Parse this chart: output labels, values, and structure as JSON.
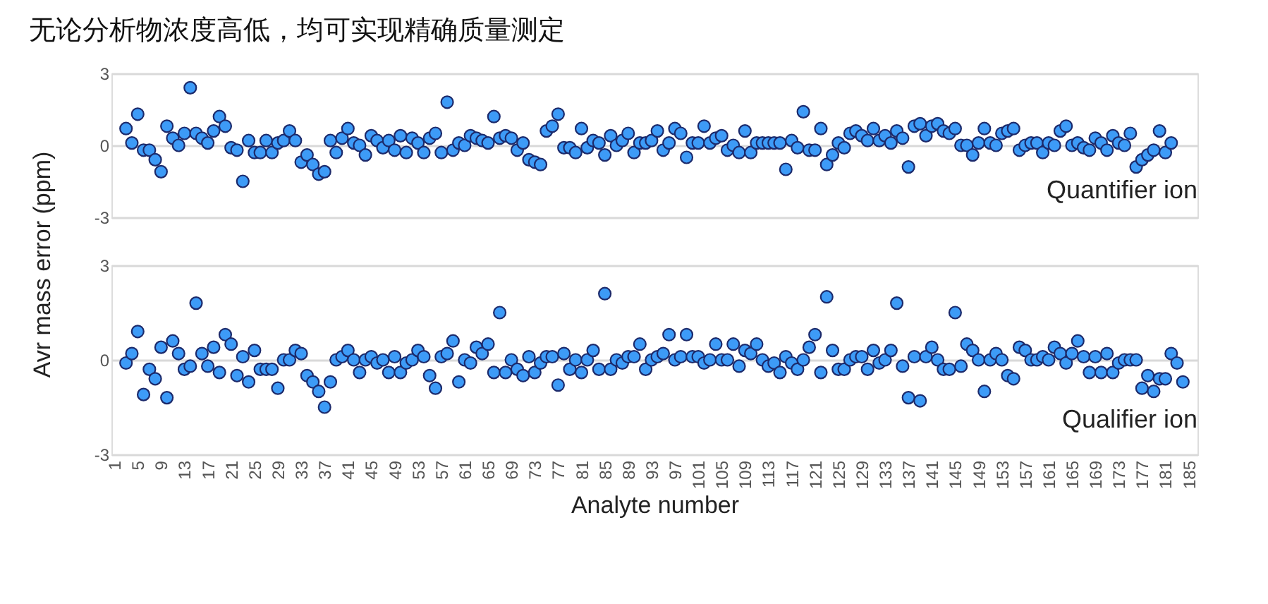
{
  "chart_data": [
    {
      "type": "scatter",
      "title": "无论分析物浓度高低，均可实现精确质量测定",
      "ylabel": "Avr mass error (ppm)",
      "annotations": [
        "Quantifier ion"
      ],
      "ylim": [
        -3,
        3
      ],
      "yticks": [
        -3,
        0,
        3
      ],
      "grid": "y",
      "marker": "circle",
      "tick_labels": "y",
      "categories": [
        "1",
        null,
        null,
        null,
        "5",
        null,
        null,
        null,
        "9",
        null,
        null,
        null,
        "13",
        null,
        null,
        null,
        "17",
        null,
        null,
        null,
        "21",
        null,
        null,
        null,
        "25",
        null,
        null,
        null,
        "29",
        null,
        null,
        null,
        "33",
        null,
        null,
        null,
        "37",
        null,
        null,
        null,
        "41",
        null,
        null,
        null,
        "45",
        null,
        null,
        null,
        "49",
        null,
        null,
        null,
        "53",
        null,
        null,
        null,
        "57",
        null,
        null,
        null,
        "61",
        null,
        null,
        null,
        "65",
        null,
        null,
        null,
        "69",
        null,
        null,
        null,
        "73",
        null,
        null,
        null,
        "77",
        null,
        null,
        null,
        "81",
        null,
        null,
        null,
        "85",
        null,
        null,
        null,
        "89",
        null,
        null,
        null,
        "93",
        null,
        null,
        null,
        "97",
        null,
        null,
        null,
        "101",
        null,
        null,
        null,
        "105",
        null,
        null,
        null,
        "109",
        null,
        null,
        null,
        "113",
        null,
        null,
        null,
        "117",
        null,
        null,
        null,
        "121",
        null,
        null,
        null,
        "125",
        null,
        null,
        null,
        "129",
        null,
        null,
        null,
        "133",
        null,
        null,
        null,
        "137",
        null,
        null,
        null,
        "141",
        null,
        null,
        null,
        "145",
        null,
        null,
        null,
        "149",
        null,
        null,
        null,
        "153",
        null,
        null,
        null,
        "157",
        null,
        null,
        null,
        "161",
        null,
        null,
        null,
        "165",
        null,
        null,
        null,
        "169",
        null,
        null,
        null,
        "173",
        null,
        null,
        null,
        "177",
        null,
        null,
        null,
        "181",
        null,
        null,
        null,
        "185",
        null
      ],
      "series": [
        {
          "color": "#3d9bf7",
          "values": [
            null,
            null,
            0.7,
            0.1,
            1.3,
            -0.2,
            -0.2,
            -0.6,
            -1.1,
            0.8,
            0.3,
            0.0,
            0.5,
            2.4,
            0.5,
            0.3,
            0.1,
            0.6,
            1.2,
            0.8,
            -0.1,
            -0.2,
            -1.5,
            0.2,
            -0.3,
            -0.3,
            0.2,
            -0.3,
            0.1,
            0.2,
            0.6,
            0.2,
            -0.7,
            -0.4,
            -0.8,
            -1.2,
            -1.1,
            0.2,
            -0.3,
            0.3,
            0.7,
            0.1,
            0.0,
            -0.4,
            0.4,
            0.2,
            -0.1,
            0.2,
            -0.2,
            0.4,
            -0.3,
            0.3,
            0.1,
            -0.3,
            0.3,
            0.5,
            -0.3,
            1.8,
            -0.2,
            0.1,
            0.0,
            0.4,
            0.3,
            0.2,
            0.1,
            1.2,
            0.3,
            0.4,
            0.3,
            -0.2,
            0.1,
            -0.6,
            -0.7,
            -0.8,
            0.6,
            0.8,
            1.3,
            -0.1,
            -0.1,
            -0.3,
            0.7,
            -0.1,
            0.2,
            0.1,
            -0.4,
            0.4,
            0.0,
            0.2,
            0.5,
            -0.3,
            0.1,
            0.1,
            0.2,
            0.6,
            -0.2,
            0.1,
            0.7,
            0.5,
            -0.5,
            0.1,
            0.1,
            0.8,
            0.1,
            0.3,
            0.4,
            -0.2,
            0.0,
            -0.3,
            0.6,
            -0.3,
            0.1,
            0.1,
            0.1,
            0.1,
            0.1,
            -1.0,
            0.2,
            -0.1,
            1.4,
            -0.2,
            -0.2,
            0.7,
            -0.8,
            -0.4,
            0.1,
            -0.1,
            0.5,
            0.6,
            0.4,
            0.2,
            0.7,
            0.2,
            0.4,
            0.1,
            0.6,
            0.3,
            -0.9,
            0.8,
            0.9,
            0.4,
            0.8,
            0.9,
            0.6,
            0.5,
            0.7,
            0.0,
            0.0,
            -0.4,
            0.1,
            0.7,
            0.1,
            0.0,
            0.5,
            0.6,
            0.7,
            -0.2,
            0.0,
            0.1,
            0.1,
            -0.3,
            0.1,
            0.0,
            0.6,
            0.8,
            0.0,
            0.1,
            -0.1,
            -0.2,
            0.3,
            0.1,
            -0.2,
            0.4,
            0.1,
            0.0,
            0.5,
            -0.9,
            -0.6,
            -0.4,
            -0.2,
            0.6,
            -0.3,
            0.1,
            null,
            null,
            null,
            null
          ]
        }
      ]
    },
    {
      "type": "scatter",
      "xlabel": "Analyte number",
      "annotations": [
        "Qualifier ion"
      ],
      "ylim": [
        -3,
        3
      ],
      "yticks": [
        -3,
        0,
        3
      ],
      "grid": "y",
      "marker": "circle",
      "categories": [
        "1",
        null,
        null,
        null,
        "5",
        null,
        null,
        null,
        "9",
        null,
        null,
        null,
        "13",
        null,
        null,
        null,
        "17",
        null,
        null,
        null,
        "21",
        null,
        null,
        null,
        "25",
        null,
        null,
        null,
        "29",
        null,
        null,
        null,
        "33",
        null,
        null,
        null,
        "37",
        null,
        null,
        null,
        "41",
        null,
        null,
        null,
        "45",
        null,
        null,
        null,
        "49",
        null,
        null,
        null,
        "53",
        null,
        null,
        null,
        "57",
        null,
        null,
        null,
        "61",
        null,
        null,
        null,
        "65",
        null,
        null,
        null,
        "69",
        null,
        null,
        null,
        "73",
        null,
        null,
        null,
        "77",
        null,
        null,
        null,
        "81",
        null,
        null,
        null,
        "85",
        null,
        null,
        null,
        "89",
        null,
        null,
        null,
        "93",
        null,
        null,
        null,
        "97",
        null,
        null,
        null,
        "101",
        null,
        null,
        null,
        "105",
        null,
        null,
        null,
        "109",
        null,
        null,
        null,
        "113",
        null,
        null,
        null,
        "117",
        null,
        null,
        null,
        "121",
        null,
        null,
        null,
        "125",
        null,
        null,
        null,
        "129",
        null,
        null,
        null,
        "133",
        null,
        null,
        null,
        "137",
        null,
        null,
        null,
        "141",
        null,
        null,
        null,
        "145",
        null,
        null,
        null,
        "149",
        null,
        null,
        null,
        "153",
        null,
        null,
        null,
        "157",
        null,
        null,
        null,
        "161",
        null,
        null,
        null,
        "165",
        null,
        null,
        null,
        "169",
        null,
        null,
        null,
        "173",
        null,
        null,
        null,
        "177",
        null,
        null,
        null,
        "181",
        null,
        null,
        null,
        "185",
        null
      ],
      "series": [
        {
          "color": "#3d9bf7",
          "values": [
            null,
            null,
            -0.1,
            0.2,
            0.9,
            -1.1,
            -0.3,
            -0.6,
            0.4,
            -1.2,
            0.6,
            0.2,
            -0.3,
            -0.2,
            1.8,
            0.2,
            -0.2,
            0.4,
            -0.4,
            0.8,
            0.5,
            -0.5,
            0.1,
            -0.7,
            0.3,
            -0.3,
            -0.3,
            -0.3,
            -0.9,
            0.0,
            0.0,
            0.3,
            0.2,
            -0.5,
            -0.7,
            -1.0,
            -1.5,
            -0.7,
            0.0,
            0.1,
            0.3,
            0.0,
            -0.4,
            0.0,
            0.1,
            -0.1,
            0.0,
            -0.4,
            0.1,
            -0.4,
            -0.1,
            0.0,
            0.3,
            0.1,
            -0.5,
            -0.9,
            0.1,
            0.2,
            0.6,
            -0.7,
            0.0,
            -0.1,
            0.4,
            0.2,
            0.5,
            -0.4,
            1.5,
            -0.4,
            0.0,
            -0.3,
            -0.5,
            0.1,
            -0.4,
            -0.1,
            0.1,
            0.1,
            -0.8,
            0.2,
            -0.3,
            0.0,
            -0.4,
            0.0,
            0.3,
            -0.3,
            2.1,
            -0.3,
            0.0,
            -0.1,
            0.1,
            0.1,
            0.5,
            -0.3,
            0.0,
            0.1,
            0.2,
            0.8,
            0.0,
            0.1,
            0.8,
            0.1,
            0.1,
            -0.1,
            0.0,
            0.5,
            0.0,
            0.0,
            0.5,
            -0.2,
            0.3,
            0.2,
            0.5,
            0.0,
            -0.2,
            -0.1,
            -0.4,
            0.1,
            -0.1,
            -0.3,
            0.0,
            0.4,
            0.8,
            -0.4,
            2.0,
            0.3,
            -0.3,
            -0.3,
            0.0,
            0.1,
            0.1,
            -0.3,
            0.3,
            -0.1,
            0.0,
            0.3,
            1.8,
            -0.2,
            -1.2,
            0.1,
            -1.3,
            0.1,
            0.4,
            0.0,
            -0.3,
            -0.3,
            1.5,
            -0.2,
            0.5,
            0.3,
            0.0,
            -1.0,
            0.0,
            0.2,
            0.0,
            -0.5,
            -0.6,
            0.4,
            0.3,
            0.0,
            0.0,
            0.1,
            0.0,
            0.4,
            0.2,
            -0.1,
            0.2,
            0.6,
            0.1,
            -0.4,
            0.1,
            -0.4,
            0.2,
            -0.4,
            -0.1,
            0.0,
            0.0,
            0.0,
            -0.9,
            -0.5,
            -1.0,
            -0.6,
            -0.6,
            0.2,
            -0.1,
            -0.7,
            null,
            null
          ]
        }
      ]
    }
  ]
}
